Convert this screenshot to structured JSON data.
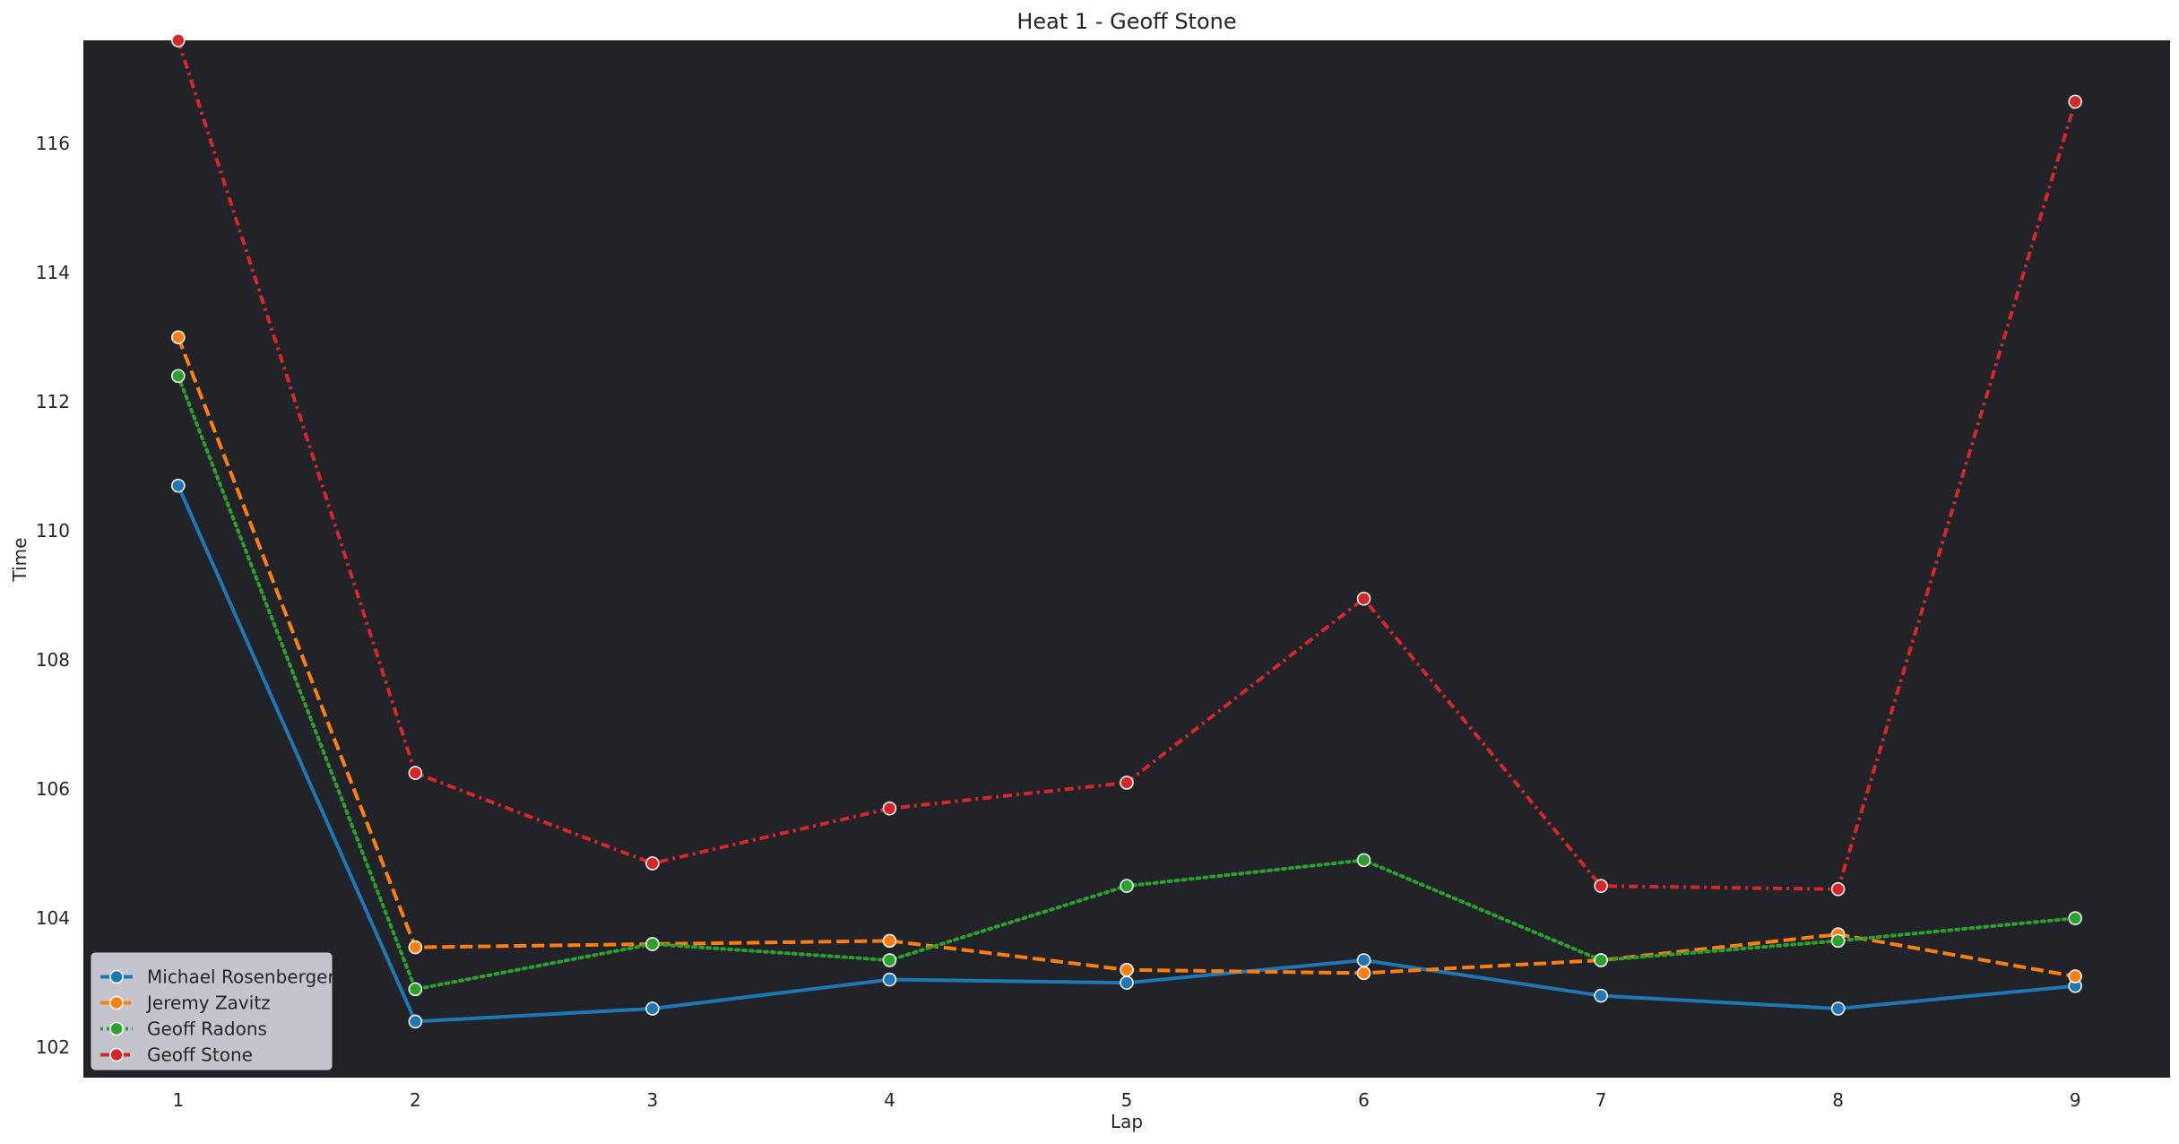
{
  "chart_data": {
    "type": "line",
    "title": "Heat 1 - Geoff Stone",
    "xlabel": "Lap",
    "ylabel": "Time",
    "x": [
      1,
      2,
      3,
      4,
      5,
      6,
      7,
      8,
      9
    ],
    "xlim": [
      0.6,
      9.4
    ],
    "ylim": [
      101.53,
      117.6
    ],
    "xticks": [
      1,
      2,
      3,
      4,
      5,
      6,
      7,
      8,
      9
    ],
    "yticks": [
      102,
      104,
      106,
      108,
      110,
      112,
      114,
      116
    ],
    "grid": false,
    "plot_background": "#212328",
    "legend": {
      "placement": "lower-left",
      "background": "#c3c4cd"
    },
    "series": [
      {
        "name": "Michael Rosenberger",
        "color": "#1f77b4",
        "style": "solid",
        "values": [
          110.7,
          102.4,
          102.6,
          103.05,
          103.0,
          103.35,
          102.8,
          102.6,
          102.95
        ]
      },
      {
        "name": "Jeremy Zavitz",
        "color": "#ff7f0e",
        "style": "dashed",
        "values": [
          113.0,
          103.55,
          103.6,
          103.65,
          103.2,
          103.15,
          103.35,
          103.75,
          103.1
        ]
      },
      {
        "name": "Geoff Radons",
        "color": "#2ca02c",
        "style": "dotted",
        "values": [
          112.4,
          102.9,
          103.6,
          103.35,
          104.5,
          104.9,
          103.35,
          103.65,
          104.0
        ]
      },
      {
        "name": "Geoff Stone",
        "color": "#d62728",
        "style": "dashdot",
        "values": [
          117.6,
          106.25,
          104.85,
          105.7,
          106.1,
          108.95,
          104.5,
          104.45,
          116.65
        ]
      }
    ]
  }
}
